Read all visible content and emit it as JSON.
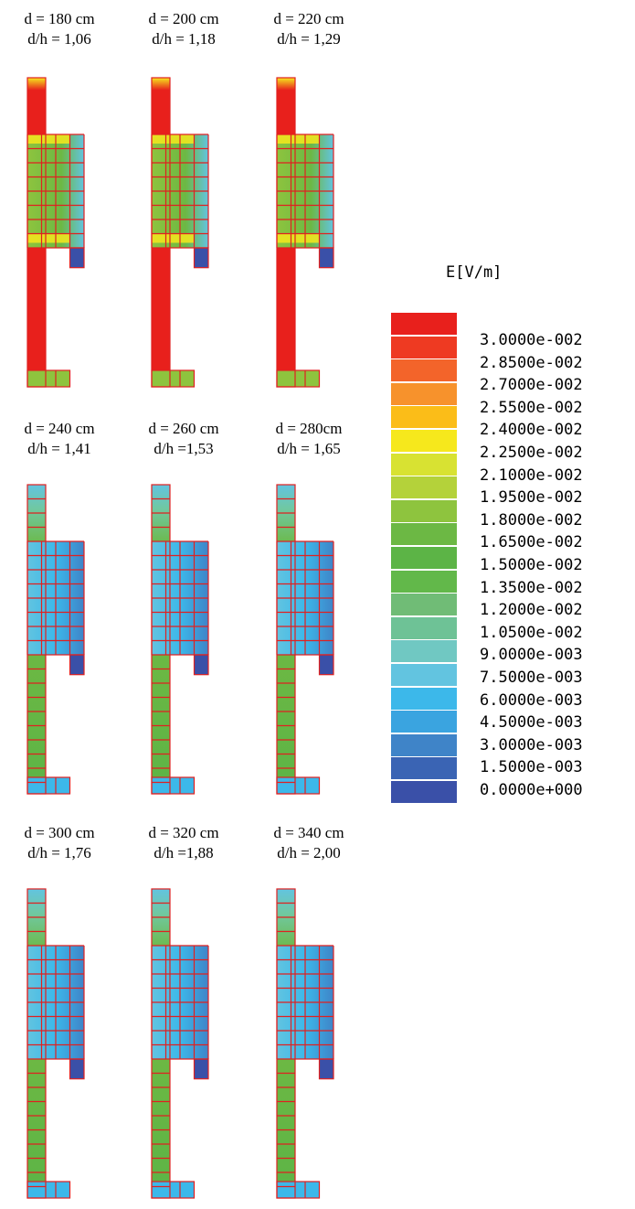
{
  "panels": [
    {
      "d": "d = 180 cm",
      "dh": "d/h = 1,06",
      "state": "high"
    },
    {
      "d": "d = 200 cm",
      "dh": "d/h = 1,18",
      "state": "high"
    },
    {
      "d": "d = 220 cm",
      "dh": "d/h = 1,29",
      "state": "high"
    },
    {
      "d": "d = 240 cm",
      "dh": "d/h = 1,41",
      "state": "low"
    },
    {
      "d": "d = 260 cm",
      "dh": "d/h =1,53",
      "state": "low"
    },
    {
      "d": "d = 280cm",
      "dh": "d/h = 1,65",
      "state": "low"
    },
    {
      "d": "d = 300 cm",
      "dh": "d/h = 1,76",
      "state": "low"
    },
    {
      "d": "d = 320 cm",
      "dh": "d/h =1,88",
      "state": "low"
    },
    {
      "d": "d = 340 cm",
      "dh": "d/h = 2,00",
      "state": "low"
    }
  ],
  "legend": {
    "title": "E[V/m]",
    "labels": [
      "3.0000e-002",
      "2.8500e-002",
      "2.7000e-002",
      "2.5500e-002",
      "2.4000e-002",
      "2.2500e-002",
      "2.1000e-002",
      "1.9500e-002",
      "1.8000e-002",
      "1.6500e-002",
      "1.5000e-002",
      "1.3500e-002",
      "1.2000e-002",
      "1.0500e-002",
      "9.0000e-003",
      "7.5000e-003",
      "6.0000e-003",
      "4.5000e-003",
      "3.0000e-003",
      "1.5000e-003",
      "0.0000e+000"
    ],
    "colors": [
      "#e8201c",
      "#ee3a22",
      "#f3642a",
      "#f7922c",
      "#fbbd18",
      "#f6e81c",
      "#d8e232",
      "#b4d23a",
      "#8ec43e",
      "#6cb844",
      "#5cb446",
      "#62b84a",
      "#70bc76",
      "#6ec296",
      "#70c8c2",
      "#62c4e0",
      "#3cb8ea",
      "#3aa4e0",
      "#3f84c8",
      "#3a64b4",
      "#3a50a8"
    ]
  },
  "colors": {
    "grid": "#e02020",
    "red": "#e8201c",
    "green": "#5cb446",
    "blue": "#3cb8ea",
    "dark_blue": "#3a50a8"
  }
}
